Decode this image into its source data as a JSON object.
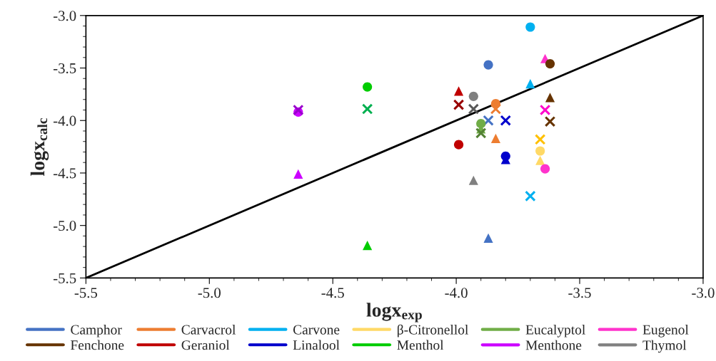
{
  "chart_data": {
    "type": "scatter",
    "xlabel": "logx$_{exp}$",
    "ylabel": "logx$_{calc}$",
    "xlim": [
      -5.5,
      -3.0
    ],
    "ylim": [
      -5.5,
      -3.0
    ],
    "xticks": [
      -5.5,
      {
        "value": -5.0,
        "label": "-5.0"
      },
      -4.5,
      {
        "value": -4.0,
        "label": "-4.0"
      },
      -3.5,
      {
        "value": -3.0,
        "label": "-3.0"
      }
    ],
    "yticks": [
      -5.5,
      {
        "value": -5.0,
        "label": "-5.0"
      },
      -4.5,
      {
        "value": -4.0,
        "label": "-4.0"
      },
      -3.5,
      {
        "value": -3.0,
        "label": "-3.0"
      }
    ],
    "grid": false,
    "legend": "bottom",
    "series": [
      {
        "name": "Camphor",
        "color": "#4472c4",
        "marker": "circle",
        "x": [
          -3.87
        ],
        "values": [
          -3.47
        ]
      },
      {
        "color": "#4472c4",
        "marker": "triangle",
        "x": [
          -3.87
        ],
        "values": [
          -5.12
        ]
      },
      {
        "color": "#4472c4",
        "marker": "cross",
        "x": [
          -3.87
        ],
        "values": [
          -4.0
        ]
      },
      {
        "name": "Carvacrol",
        "color": "#ed7d31",
        "marker": "circle",
        "x": [
          -3.84
        ],
        "values": [
          -3.84
        ]
      },
      {
        "color": "#ed7d31",
        "marker": "triangle",
        "x": [
          -3.84
        ],
        "values": [
          -4.17
        ]
      },
      {
        "color": "#ed7d31",
        "marker": "cross",
        "x": [
          -3.84
        ],
        "values": [
          -3.89
        ]
      },
      {
        "name": "Carvone",
        "color": "#00b0f0",
        "marker": "circle",
        "x": [
          -3.7
        ],
        "values": [
          -3.11
        ]
      },
      {
        "color": "#00b0f0",
        "marker": "triangle",
        "x": [
          -3.7
        ],
        "values": [
          -3.65
        ]
      },
      {
        "color": "#00b0f0",
        "marker": "cross",
        "x": [
          -3.7
        ],
        "values": [
          -4.72
        ]
      },
      {
        "name": "β-Citronellol",
        "color": "#ffd966",
        "marker": "circle",
        "x": [
          -3.66
        ],
        "values": [
          -4.29
        ]
      },
      {
        "color": "#ffd966",
        "marker": "triangle",
        "x": [
          -3.66
        ],
        "values": [
          -4.38
        ]
      },
      {
        "color": "#ffc000",
        "marker": "cross",
        "x": [
          -3.66
        ],
        "values": [
          -4.18
        ]
      },
      {
        "name": "Eucalyptol",
        "color": "#70ad47",
        "marker": "circle",
        "x": [
          -3.9
        ],
        "values": [
          -4.03
        ]
      },
      {
        "color": "#70ad47",
        "marker": "triangle",
        "x": [
          -3.9
        ],
        "values": [
          -4.08
        ]
      },
      {
        "color": "#548235",
        "marker": "cross",
        "x": [
          -3.9
        ],
        "values": [
          -4.12
        ]
      },
      {
        "name": "Eugenol",
        "color": "#ff33cc",
        "marker": "circle",
        "x": [
          -3.64
        ],
        "values": [
          -4.46
        ]
      },
      {
        "color": "#ff33cc",
        "marker": "triangle",
        "x": [
          -3.64
        ],
        "values": [
          -3.41
        ]
      },
      {
        "color": "#ff00cc",
        "marker": "cross",
        "x": [
          -3.64
        ],
        "values": [
          -3.9
        ]
      },
      {
        "name": "Fenchone",
        "color": "#663300",
        "marker": "circle",
        "x": [
          -3.62
        ],
        "values": [
          -3.46
        ]
      },
      {
        "color": "#663300",
        "marker": "triangle",
        "x": [
          -3.62
        ],
        "values": [
          -3.78
        ]
      },
      {
        "color": "#663300",
        "marker": "cross",
        "x": [
          -3.62
        ],
        "values": [
          -4.01
        ]
      },
      {
        "name": "Geraniol",
        "color": "#c00000",
        "marker": "circle",
        "x": [
          -3.99
        ],
        "values": [
          -4.23
        ]
      },
      {
        "color": "#c00000",
        "marker": "triangle",
        "x": [
          -3.99
        ],
        "values": [
          -3.72
        ]
      },
      {
        "color": "#990000",
        "marker": "cross",
        "x": [
          -3.99
        ],
        "values": [
          -3.85
        ]
      },
      {
        "name": "Linalool",
        "color": "#0000cc",
        "marker": "circle",
        "x": [
          -3.8
        ],
        "values": [
          -4.34
        ]
      },
      {
        "color": "#0000cc",
        "marker": "triangle",
        "x": [
          -3.8
        ],
        "values": [
          -4.37
        ]
      },
      {
        "color": "#0000cc",
        "marker": "cross",
        "x": [
          -3.8
        ],
        "values": [
          -4.0
        ]
      },
      {
        "name": "Menthol",
        "color": "#00cc00",
        "marker": "circle",
        "x": [
          -4.36
        ],
        "values": [
          -3.68
        ]
      },
      {
        "color": "#00cc00",
        "marker": "triangle",
        "x": [
          -4.36
        ],
        "values": [
          -5.19
        ]
      },
      {
        "color": "#00b050",
        "marker": "cross",
        "x": [
          -4.36
        ],
        "values": [
          -3.89
        ]
      },
      {
        "name": "Menthone",
        "color": "#cc00ff",
        "marker": "circle",
        "x": [
          -4.64
        ],
        "values": [
          -3.92
        ]
      },
      {
        "color": "#cc00ff",
        "marker": "triangle",
        "x": [
          -4.64
        ],
        "values": [
          -4.51
        ]
      },
      {
        "color": "#9900cc",
        "marker": "cross",
        "x": [
          -4.64
        ],
        "values": [
          -3.9
        ]
      },
      {
        "name": "Thymol",
        "color": "#808080",
        "marker": "circle",
        "x": [
          -3.93
        ],
        "values": [
          -3.77
        ]
      },
      {
        "color": "#808080",
        "marker": "triangle",
        "x": [
          -3.93
        ],
        "values": [
          -4.57
        ]
      },
      {
        "color": "#595959",
        "marker": "cross",
        "x": [
          -3.93
        ],
        "values": [
          -3.89
        ]
      },
      {
        "type": "line",
        "color": "#000000",
        "marker": "none",
        "x": [
          -5.5,
          -3.0
        ],
        "values": [
          -5.5,
          -3.0
        ]
      }
    ]
  }
}
